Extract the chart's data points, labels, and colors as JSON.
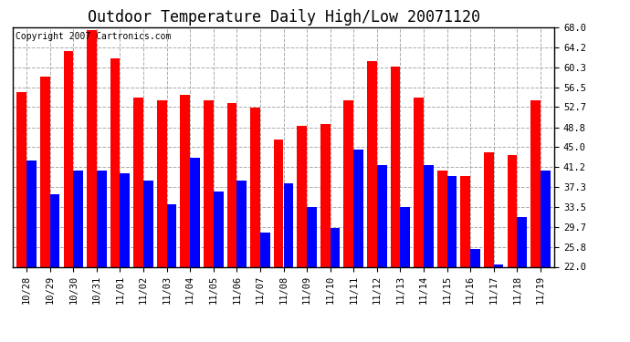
{
  "title": "Outdoor Temperature Daily High/Low 20071120",
  "copyright": "Copyright 2007 Cartronics.com",
  "categories": [
    "10/28",
    "10/29",
    "10/30",
    "10/31",
    "11/01",
    "11/02",
    "11/03",
    "11/04",
    "11/05",
    "11/06",
    "11/07",
    "11/08",
    "11/09",
    "11/10",
    "11/11",
    "11/12",
    "11/13",
    "11/14",
    "11/15",
    "11/16",
    "11/17",
    "11/18",
    "11/19"
  ],
  "highs": [
    55.5,
    58.5,
    63.5,
    67.5,
    62.0,
    54.5,
    54.0,
    55.0,
    54.0,
    53.5,
    52.5,
    46.5,
    49.0,
    49.5,
    54.0,
    61.5,
    60.5,
    54.5,
    40.5,
    39.5,
    44.0,
    43.5,
    54.0
  ],
  "lows": [
    42.5,
    36.0,
    40.5,
    40.5,
    40.0,
    38.5,
    34.0,
    43.0,
    36.5,
    38.5,
    28.5,
    38.0,
    33.5,
    29.5,
    44.5,
    41.5,
    33.5,
    41.5,
    39.5,
    25.5,
    22.5,
    31.5,
    40.5
  ],
  "high_color": "#ff0000",
  "low_color": "#0000ff",
  "bg_color": "#ffffff",
  "plot_bg_color": "#ffffff",
  "grid_color": "#aaaaaa",
  "ylim_min": 22.0,
  "ylim_max": 68.0,
  "yticks": [
    22.0,
    25.8,
    29.7,
    33.5,
    37.3,
    41.2,
    45.0,
    48.8,
    52.7,
    56.5,
    60.3,
    64.2,
    68.0
  ],
  "bar_width": 0.42,
  "title_fontsize": 12,
  "tick_fontsize": 7.5,
  "copyright_fontsize": 7
}
